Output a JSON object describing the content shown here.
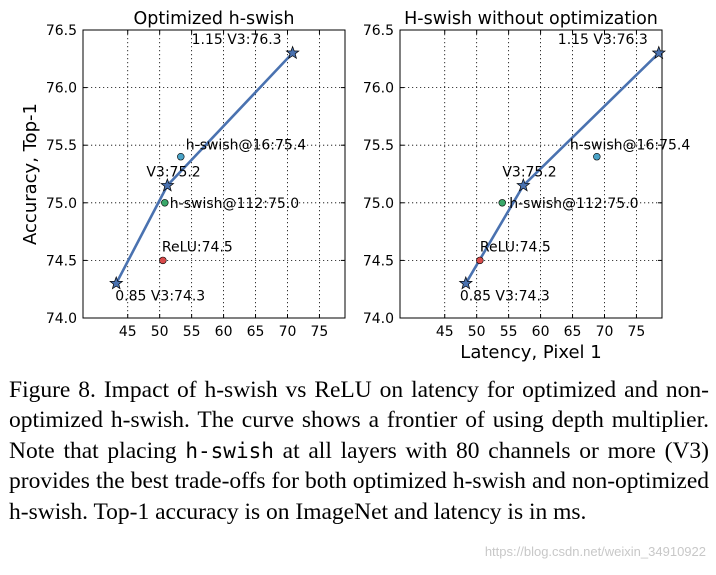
{
  "chart_data": [
    {
      "type": "scatter",
      "title": "Optimized h-swish",
      "xlabel": "",
      "ylabel": "Accuracy, Top-1",
      "xlim": [
        38,
        79
      ],
      "ylim": [
        74.0,
        76.5
      ],
      "xticks": [
        45,
        50,
        55,
        60,
        65,
        70,
        75
      ],
      "yticks": [
        74.0,
        74.5,
        75.0,
        75.5,
        76.0,
        76.5
      ],
      "grid": true,
      "frontier": {
        "name": "frontier",
        "x": [
          43.2,
          51.2,
          70.8
        ],
        "y": [
          74.3,
          75.15,
          76.3
        ],
        "color": "#4a72b0"
      },
      "points": [
        {
          "label": "0.85 V3:74.3",
          "x": 43.2,
          "y": 74.3,
          "marker": "star"
        },
        {
          "label": "V3:75.2",
          "x": 51.2,
          "y": 75.15,
          "marker": "star"
        },
        {
          "label": "1.15 V3:76.3",
          "x": 70.8,
          "y": 76.3,
          "marker": "star"
        },
        {
          "label": "h-swish@16:75.4",
          "x": 53.3,
          "y": 75.4,
          "marker": "circle",
          "color": "#4aa3c7"
        },
        {
          "label": "h-swish@112:75.0",
          "x": 50.8,
          "y": 75.0,
          "marker": "circle",
          "color": "#3aa86a"
        },
        {
          "label": "ReLU:74.5",
          "x": 50.5,
          "y": 74.5,
          "marker": "circle",
          "color": "#d94a4a"
        }
      ]
    },
    {
      "type": "scatter",
      "title": "H-swish without optimization",
      "xlabel": "Latency, Pixel 1",
      "ylabel": "",
      "xlim": [
        38,
        79
      ],
      "ylim": [
        74.0,
        76.5
      ],
      "xticks": [
        45,
        50,
        55,
        60,
        65,
        70,
        75
      ],
      "yticks": [
        74.0,
        74.5,
        75.0,
        75.5,
        76.0,
        76.5
      ],
      "grid": true,
      "frontier": {
        "name": "frontier",
        "x": [
          48.3,
          57.3,
          78.5
        ],
        "y": [
          74.3,
          75.15,
          76.3
        ],
        "color": "#4a72b0"
      },
      "points": [
        {
          "label": "0.85 V3:74.3",
          "x": 48.3,
          "y": 74.3,
          "marker": "star"
        },
        {
          "label": "V3:75.2",
          "x": 57.3,
          "y": 75.15,
          "marker": "star"
        },
        {
          "label": "1.15 V3:76.3",
          "x": 78.5,
          "y": 76.3,
          "marker": "star"
        },
        {
          "label": "h-swish@16:75.4",
          "x": 68.8,
          "y": 75.4,
          "marker": "circle",
          "color": "#4aa3c7"
        },
        {
          "label": "h-swish@112:75.0",
          "x": 54.0,
          "y": 75.0,
          "marker": "circle",
          "color": "#3aa86a"
        },
        {
          "label": "ReLU:74.5",
          "x": 50.5,
          "y": 74.5,
          "marker": "circle",
          "color": "#d94a4a"
        }
      ]
    }
  ],
  "caption": {
    "part1": "Figure 8. Impact of h-swish vs ReLU on latency for optimized and non-optimized h-swish. The curve shows a frontier of using depth multiplier. Note that placing ",
    "code": "h-swish",
    "part2": " at all layers with 80 channels or more (V3) provides the best trade-offs for both optimized h-swish and non-optimized h-swish. Top-1 accuracy is on ImageNet and latency is in ms."
  },
  "watermark": "https://blog.csdn.net/weixin_34910922"
}
